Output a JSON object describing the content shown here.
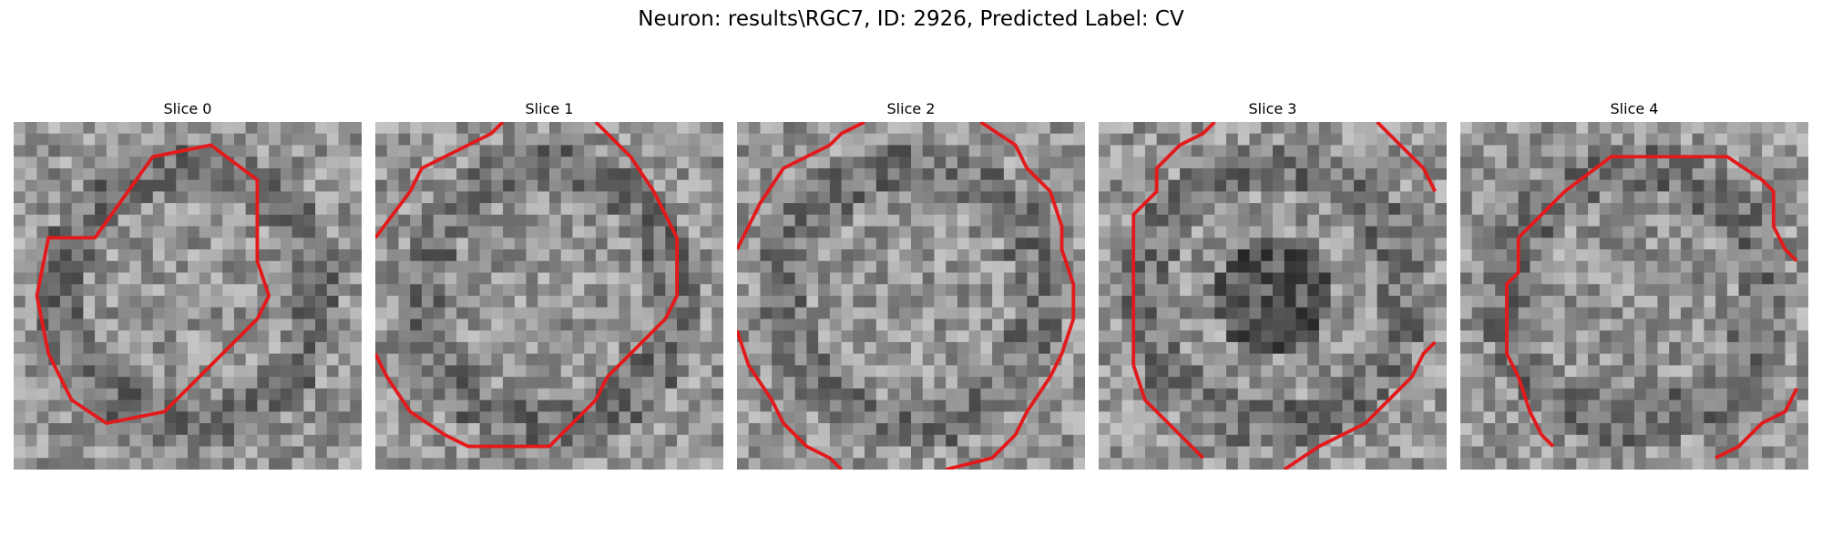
{
  "figure": {
    "title": "Neuron: results\\RGC7, ID: 2926, Predicted Label: CV"
  },
  "panels": [
    {
      "label": "Slice 0",
      "contour_color": "#e31a1c"
    },
    {
      "label": "Slice 1",
      "contour_color": "#e31a1c"
    },
    {
      "label": "Slice 2",
      "contour_color": "#e31a1c"
    },
    {
      "label": "Slice 3",
      "contour_color": "#e31a1c"
    },
    {
      "label": "Slice 4",
      "contour_color": "#e31a1c"
    }
  ]
}
